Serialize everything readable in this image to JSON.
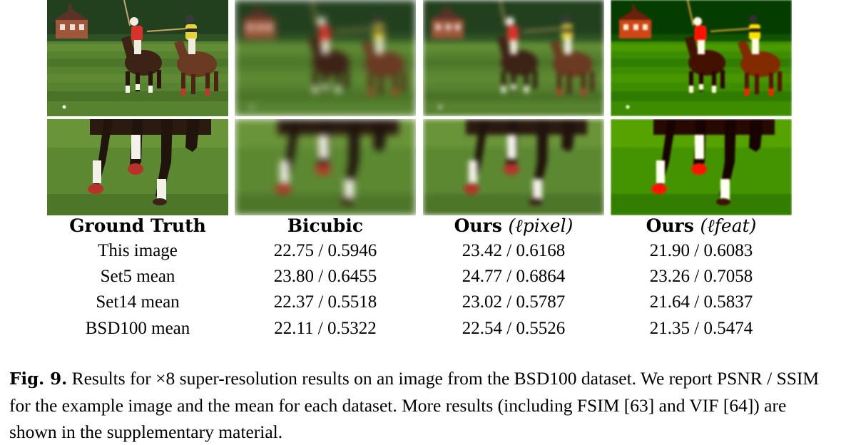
{
  "columns": [
    {
      "name": "Ground Truth",
      "sub": ""
    },
    {
      "name": "Bicubic",
      "sub": ""
    },
    {
      "name": "Ours",
      "sub": "(ℓpixel)"
    },
    {
      "name": "Ours",
      "sub": "(ℓfeat)"
    }
  ],
  "rows": [
    {
      "label": "This image",
      "values": [
        "22.75 / 0.5946",
        "23.42 / 0.6168",
        "21.90 / 0.6083"
      ]
    },
    {
      "label": "Set5 mean",
      "values": [
        "23.80 / 0.6455",
        "24.77 / 0.6864",
        "23.26 / 0.7058"
      ]
    },
    {
      "label": "Set14 mean",
      "values": [
        "22.37 / 0.5518",
        "23.02 / 0.5787",
        "21.64 / 0.5837"
      ]
    },
    {
      "label": "BSD100 mean",
      "values": [
        "22.11 / 0.5322",
        "22.54 / 0.5526",
        "21.35 / 0.5474"
      ]
    }
  ],
  "caption": {
    "label": "Fig. 9.",
    "text": "Results for ×8 super-resolution results on an image from the BSD100 dataset. We report PSNR / SSIM for the example image and the mean for each dataset. More results (including FSIM [63] and VIF [64]) are shown in the supplementary material."
  },
  "colors": {
    "grass": "#4f7a2c",
    "sky_trees": "#1f3a1a",
    "horse": "#5a3320",
    "jersey_red": "#d8332b",
    "jersey_yellow": "#e3d23a"
  }
}
